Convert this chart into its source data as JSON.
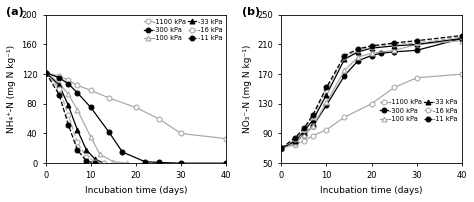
{
  "panel_a": {
    "title": "(a)",
    "ylabel": "NH₄⁺-N (mg N kg⁻¹)",
    "xlabel": "Incubation time (days)",
    "xlim": [
      0,
      40
    ],
    "ylim": [
      0,
      200
    ],
    "yticks": [
      0,
      40,
      80,
      120,
      160,
      200
    ],
    "xticks": [
      0,
      10,
      20,
      30,
      40
    ],
    "series": {
      "-1100 kPa": {
        "x": [
          0,
          3,
          5,
          7,
          10,
          14,
          20,
          25,
          30,
          40
        ],
        "y": [
          122,
          117,
          112,
          105,
          98,
          88,
          75,
          60,
          40,
          33
        ],
        "marker": "o",
        "filled": false,
        "color": "#aaaaaa"
      },
      "-300 kPa": {
        "x": [
          0,
          3,
          5,
          7,
          10,
          14,
          17,
          22,
          25,
          30,
          40
        ],
        "y": [
          122,
          115,
          107,
          95,
          75,
          42,
          15,
          2,
          1,
          0,
          0
        ],
        "marker": "o",
        "filled": true,
        "color": "#000000"
      },
      "-100 kPa": {
        "x": [
          0,
          3,
          5,
          7,
          10,
          12,
          15,
          18
        ],
        "y": [
          122,
          108,
          93,
          72,
          35,
          12,
          2,
          0
        ],
        "marker": "^",
        "filled": false,
        "color": "#aaaaaa"
      },
      "-33 kPa": {
        "x": [
          0,
          3,
          5,
          7,
          9,
          11,
          13
        ],
        "y": [
          122,
          105,
          78,
          45,
          18,
          5,
          0
        ],
        "marker": "^",
        "filled": true,
        "color": "#000000"
      },
      "-16 kPa": {
        "x": [
          0,
          3,
          5,
          7,
          9,
          11,
          13
        ],
        "y": [
          122,
          100,
          65,
          28,
          8,
          2,
          0
        ],
        "marker": "o",
        "filled": false,
        "color": "#aaaaaa",
        "linestyle": "--"
      },
      "-11 kPa": {
        "x": [
          0,
          3,
          5,
          7,
          9,
          11
        ],
        "y": [
          122,
          92,
          52,
          18,
          3,
          0
        ],
        "marker": "o",
        "filled": true,
        "color": "#000000",
        "linestyle": "--"
      }
    }
  },
  "panel_b": {
    "title": "(b)",
    "ylabel": "NO₃⁻-N (mg N kg⁻¹)",
    "xlabel": "Incubation time (days)",
    "xlim": [
      0,
      40
    ],
    "ylim": [
      50,
      250
    ],
    "yticks": [
      50,
      90,
      130,
      170,
      210,
      250
    ],
    "xticks": [
      0,
      10,
      20,
      30,
      40
    ],
    "series": {
      "-1100 kPa": {
        "x": [
          0,
          3,
          5,
          7,
          10,
          14,
          20,
          25,
          30,
          40
        ],
        "y": [
          70,
          75,
          80,
          87,
          95,
          112,
          130,
          152,
          165,
          170
        ],
        "marker": "o",
        "filled": false,
        "color": "#aaaaaa"
      },
      "-300 kPa": {
        "x": [
          0,
          3,
          5,
          7,
          10,
          14,
          17,
          20,
          22,
          25,
          30,
          40
        ],
        "y": [
          70,
          78,
          88,
          100,
          128,
          168,
          188,
          195,
          198,
          200,
          202,
          218
        ],
        "marker": "o",
        "filled": true,
        "color": "#000000"
      },
      "-100 kPa": {
        "x": [
          0,
          3,
          5,
          7,
          10,
          14,
          17,
          20,
          25,
          30,
          40
        ],
        "y": [
          70,
          77,
          88,
          100,
          132,
          175,
          193,
          198,
          202,
          210,
          215
        ],
        "marker": "^",
        "filled": false,
        "color": "#aaaaaa"
      },
      "-33 kPa": {
        "x": [
          0,
          3,
          5,
          7,
          10,
          14,
          17,
          20,
          25,
          30,
          40
        ],
        "y": [
          70,
          80,
          93,
          108,
          142,
          190,
          200,
          205,
          208,
          210,
          218
        ],
        "marker": "^",
        "filled": true,
        "color": "#000000"
      },
      "-16 kPa": {
        "x": [
          0,
          3,
          5,
          7,
          10,
          14,
          17,
          20,
          25,
          30,
          40
        ],
        "y": [
          70,
          82,
          95,
          112,
          148,
          193,
          202,
          207,
          210,
          212,
          220
        ],
        "marker": "o",
        "filled": false,
        "color": "#aaaaaa",
        "linestyle": "--"
      },
      "-11 kPa": {
        "x": [
          0,
          3,
          5,
          7,
          10,
          14,
          17,
          20,
          25,
          30,
          40
        ],
        "y": [
          70,
          84,
          97,
          115,
          152,
          195,
          204,
          208,
          212,
          215,
          222
        ],
        "marker": "o",
        "filled": true,
        "color": "#000000",
        "linestyle": "--"
      }
    }
  }
}
